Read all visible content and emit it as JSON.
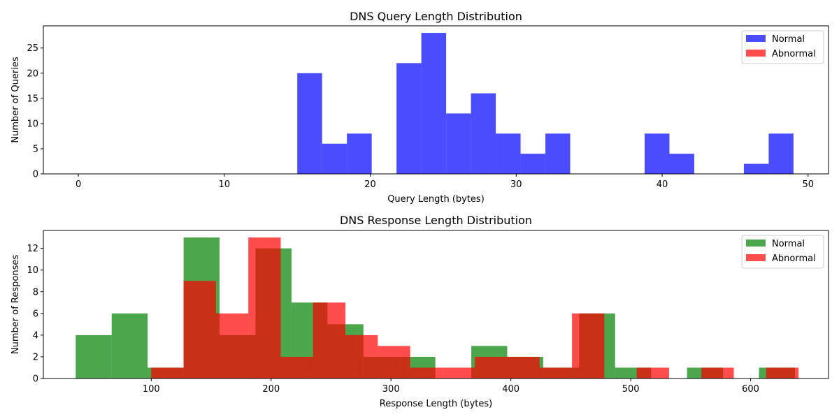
{
  "chart_data": [
    {
      "type": "histogram",
      "title": "DNS Query Length Distribution",
      "xlabel": "Query Length (bytes)",
      "ylabel": "Number of Queries",
      "xlim": [
        -2.4,
        51.4
      ],
      "ylim": [
        0,
        29.4
      ],
      "xticks": [
        0,
        10,
        20,
        30,
        40,
        50
      ],
      "yticks": [
        0,
        5,
        10,
        15,
        20,
        25
      ],
      "legend_position": "upper right",
      "series": [
        {
          "name": "Normal",
          "color": "#0000ff",
          "bins": [
            [
              15.0,
              16.7,
              20
            ],
            [
              16.7,
              18.4,
              6
            ],
            [
              18.4,
              20.1,
              8
            ],
            [
              20.1,
              21.8,
              0
            ],
            [
              21.8,
              23.5,
              22
            ],
            [
              23.5,
              25.2,
              28
            ],
            [
              25.2,
              26.9,
              12
            ],
            [
              26.9,
              28.6,
              16
            ],
            [
              28.6,
              30.3,
              8
            ],
            [
              30.3,
              32.0,
              4
            ],
            [
              32.0,
              33.7,
              8
            ],
            [
              33.7,
              35.4,
              0
            ],
            [
              35.4,
              37.1,
              0
            ],
            [
              37.1,
              38.8,
              0
            ],
            [
              38.8,
              40.5,
              8
            ],
            [
              40.5,
              42.2,
              4
            ],
            [
              42.2,
              43.9,
              0
            ],
            [
              43.9,
              45.6,
              0
            ],
            [
              45.6,
              47.3,
              2
            ],
            [
              47.3,
              49.0,
              8
            ]
          ]
        },
        {
          "name": "Abnormal",
          "color": "#ff0000",
          "bins": []
        }
      ]
    },
    {
      "type": "histogram",
      "title": "DNS Response Length Distribution",
      "xlabel": "Response Length (bytes)",
      "ylabel": "Number of Responses",
      "xlim": [
        10,
        665
      ],
      "ylim": [
        0,
        13.65
      ],
      "xticks": [
        100,
        200,
        300,
        400,
        500,
        600
      ],
      "yticks": [
        0,
        2,
        4,
        6,
        8,
        10,
        12
      ],
      "legend_position": "upper right",
      "series": [
        {
          "name": "Normal",
          "color": "#008000",
          "bins": [
            [
              37,
              67,
              4
            ],
            [
              67,
              97,
              6
            ],
            [
              97,
              127,
              1
            ],
            [
              127,
              157,
              13
            ],
            [
              157,
              187,
              4
            ],
            [
              187,
              217,
              12
            ],
            [
              217,
              247,
              7
            ],
            [
              247,
              277,
              5
            ],
            [
              277,
              307,
              2
            ],
            [
              307,
              337,
              2
            ],
            [
              337,
              367,
              0
            ],
            [
              367,
              397,
              3
            ],
            [
              397,
              427,
              2
            ],
            [
              427,
              457,
              1
            ],
            [
              457,
              487,
              6
            ],
            [
              487,
              517,
              1
            ],
            [
              517,
              547,
              0
            ],
            [
              547,
              577,
              1
            ],
            [
              577,
              607,
              0
            ],
            [
              607,
              637,
              1
            ]
          ]
        },
        {
          "name": "Abnormal",
          "color": "#ff0000",
          "bins": [
            [
              100,
              127,
              1
            ],
            [
              127,
              154,
              9
            ],
            [
              154,
              181,
              6
            ],
            [
              181,
              208,
              13
            ],
            [
              208,
              235,
              2
            ],
            [
              235,
              262,
              7
            ],
            [
              262,
              289,
              4
            ],
            [
              289,
              316,
              3
            ],
            [
              316,
              343,
              1
            ],
            [
              343,
              370,
              1
            ],
            [
              370,
              397,
              2
            ],
            [
              397,
              424,
              2
            ],
            [
              424,
              451,
              1
            ],
            [
              451,
              478,
              6
            ],
            [
              478,
              505,
              0
            ],
            [
              505,
              532,
              1
            ],
            [
              532,
              559,
              0
            ],
            [
              559,
              586,
              1
            ],
            [
              586,
              613,
              0
            ],
            [
              613,
              640,
              1
            ]
          ]
        }
      ]
    }
  ]
}
